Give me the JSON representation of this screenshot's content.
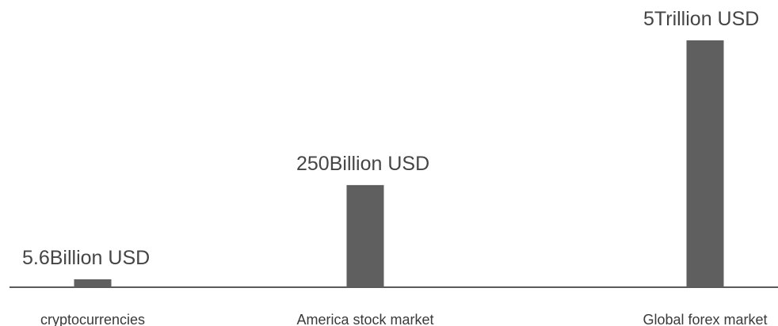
{
  "chart_data": {
    "type": "bar",
    "categories": [
      "cryptocurrencies",
      "America stock market",
      "Global forex market"
    ],
    "values": [
      5.6,
      250,
      5000
    ],
    "value_unit": "Billion USD",
    "data_labels": [
      "5.6Billion USD",
      "250Billion USD",
      "5Trillion USD"
    ],
    "title": "",
    "xlabel": "",
    "ylabel": "",
    "grid": false,
    "legend": "none",
    "colors": {
      "bar": "#5f5f5f",
      "axis": "#5a5a5a",
      "text": "#454545"
    }
  }
}
